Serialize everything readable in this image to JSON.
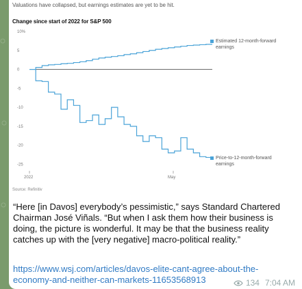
{
  "message": {
    "chart_subtitle": "Valuations have collapsed, but earnings estimates are yet to be hit.",
    "text": "“Here [in Davos] everybody’s pessimistic,” says Standard Chartered Chairman José Viñals. “But when I ask them how their business is doing, the picture is wonderful. It may be that the business reality catches up with the [very negative] macro-political reality.”",
    "link": "https://www.wsj.com/articles/davos-elite-cant-agree-about-the-economy-and-neither-can-markets-11653568913",
    "views": "134",
    "time": "7:04 AM",
    "icons": {
      "views": "eye-icon"
    }
  },
  "chart_data": {
    "type": "line",
    "title": "Change since start of 2022 for S&P 500",
    "source": "Source: Refinitiv",
    "x_tick_labels": [
      "2022",
      "May"
    ],
    "y_tick_labels": [
      "10%",
      "5",
      "0",
      "-5",
      "-10",
      "-15",
      "-20",
      "-25"
    ],
    "ylim": [
      -26,
      10
    ],
    "series": [
      {
        "name": "Estimated 12-month-forward earnings",
        "color": "#4aa3d8",
        "values": [
          0,
          0.5,
          1,
          1.2,
          1.3,
          1.5,
          1.6,
          1.8,
          2,
          2.3,
          2.7,
          3,
          3.2,
          3.4,
          3.6,
          3.9,
          4.1,
          4.4,
          4.7,
          5,
          5.3,
          5.5,
          5.7,
          5.9,
          6.1,
          6.3,
          6.4,
          6.5,
          6.6,
          6.6
        ]
      },
      {
        "name": "Price-to-12-month-forward earnings",
        "color": "#4aa3d8",
        "values": [
          0,
          -3,
          -3.2,
          -6,
          -6.5,
          -10.5,
          -8,
          -9.5,
          -14,
          -13.5,
          -12,
          -14.5,
          -13,
          -10,
          -12.5,
          -14.5,
          -15,
          -17.5,
          -19,
          -17.5,
          -18,
          -21,
          -22,
          -21.5,
          -18,
          -21,
          -22,
          -23,
          -23.2,
          -23.3
        ]
      }
    ],
    "grid": false,
    "legend": "right"
  }
}
